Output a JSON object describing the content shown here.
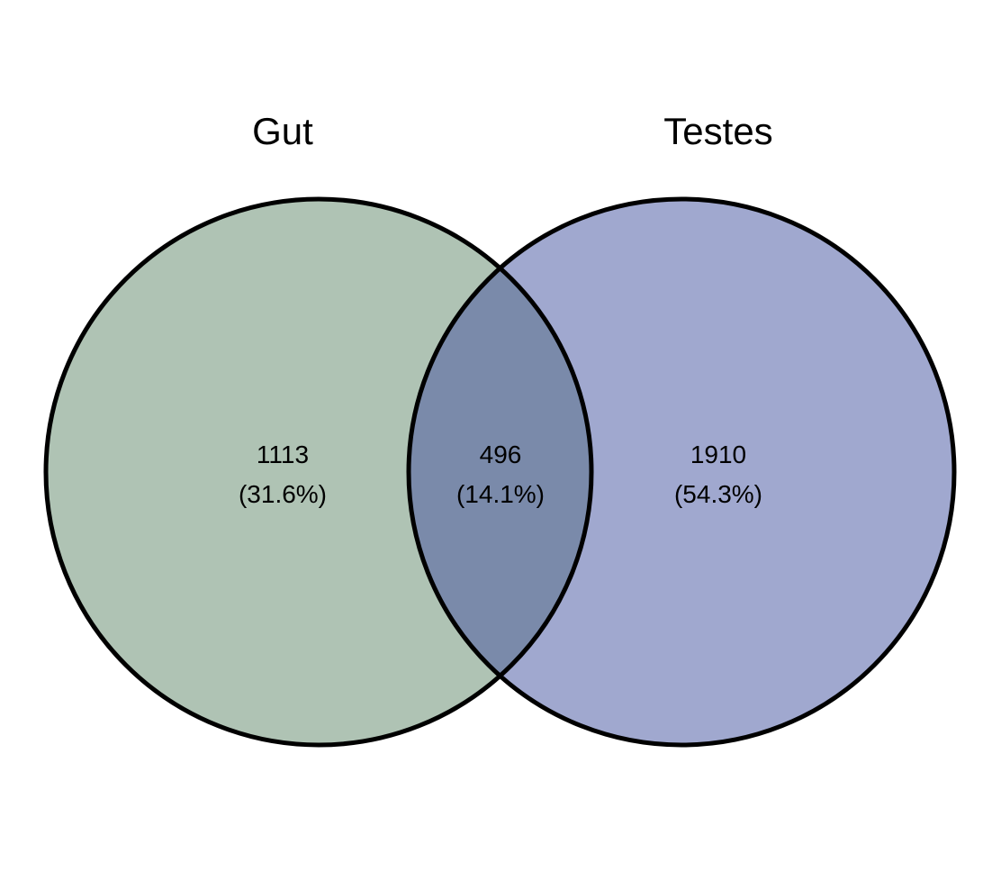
{
  "diagram": {
    "type": "venn",
    "sets": [
      {
        "name": "Gut",
        "color": "#afc3b4",
        "exclusive_count": "1113",
        "exclusive_percent": "(31.6%)"
      },
      {
        "name": "Testes",
        "color": "#a0a8cf",
        "exclusive_count": "1910",
        "exclusive_percent": "(54.3%)"
      }
    ],
    "intersection": {
      "count": "496",
      "percent": "(14.1%)",
      "color": "#7a8aaa"
    },
    "outline_color": "#000000"
  }
}
